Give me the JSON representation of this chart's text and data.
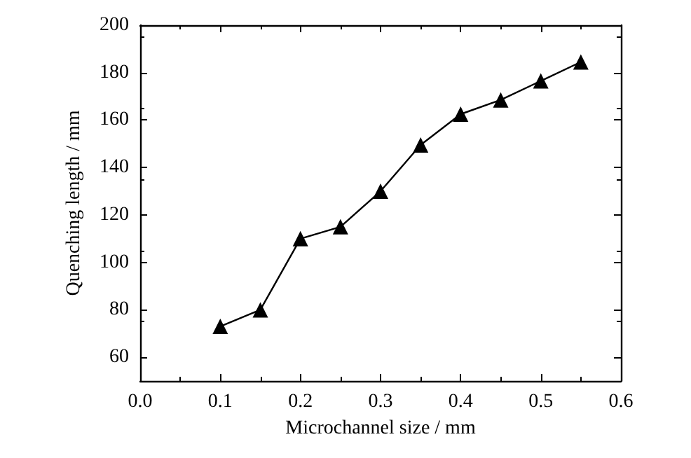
{
  "chart_data": {
    "type": "line",
    "xlabel": "Microchannel size / mm",
    "ylabel": "Quenching length / mm",
    "x": [
      0.1,
      0.15,
      0.2,
      0.25,
      0.3,
      0.35,
      0.4,
      0.45,
      0.5,
      0.55
    ],
    "series": [
      {
        "color": "#000000",
        "values": [
          73,
          80,
          110,
          115,
          130,
          149.5,
          162.5,
          168.5,
          176.5,
          184.5
        ]
      }
    ],
    "xlim": [
      0.0,
      0.6
    ],
    "xticks": [
      {
        "value": 0,
        "label": "0.0"
      },
      0.1,
      0.2,
      0.3,
      0.4,
      0.5,
      0.6
    ],
    "ylim": [
      50,
      200
    ],
    "yticks": [
      60,
      80,
      100,
      120,
      140,
      160,
      180,
      200
    ],
    "marker": "triangle",
    "line_style": "solid",
    "grid": false
  }
}
